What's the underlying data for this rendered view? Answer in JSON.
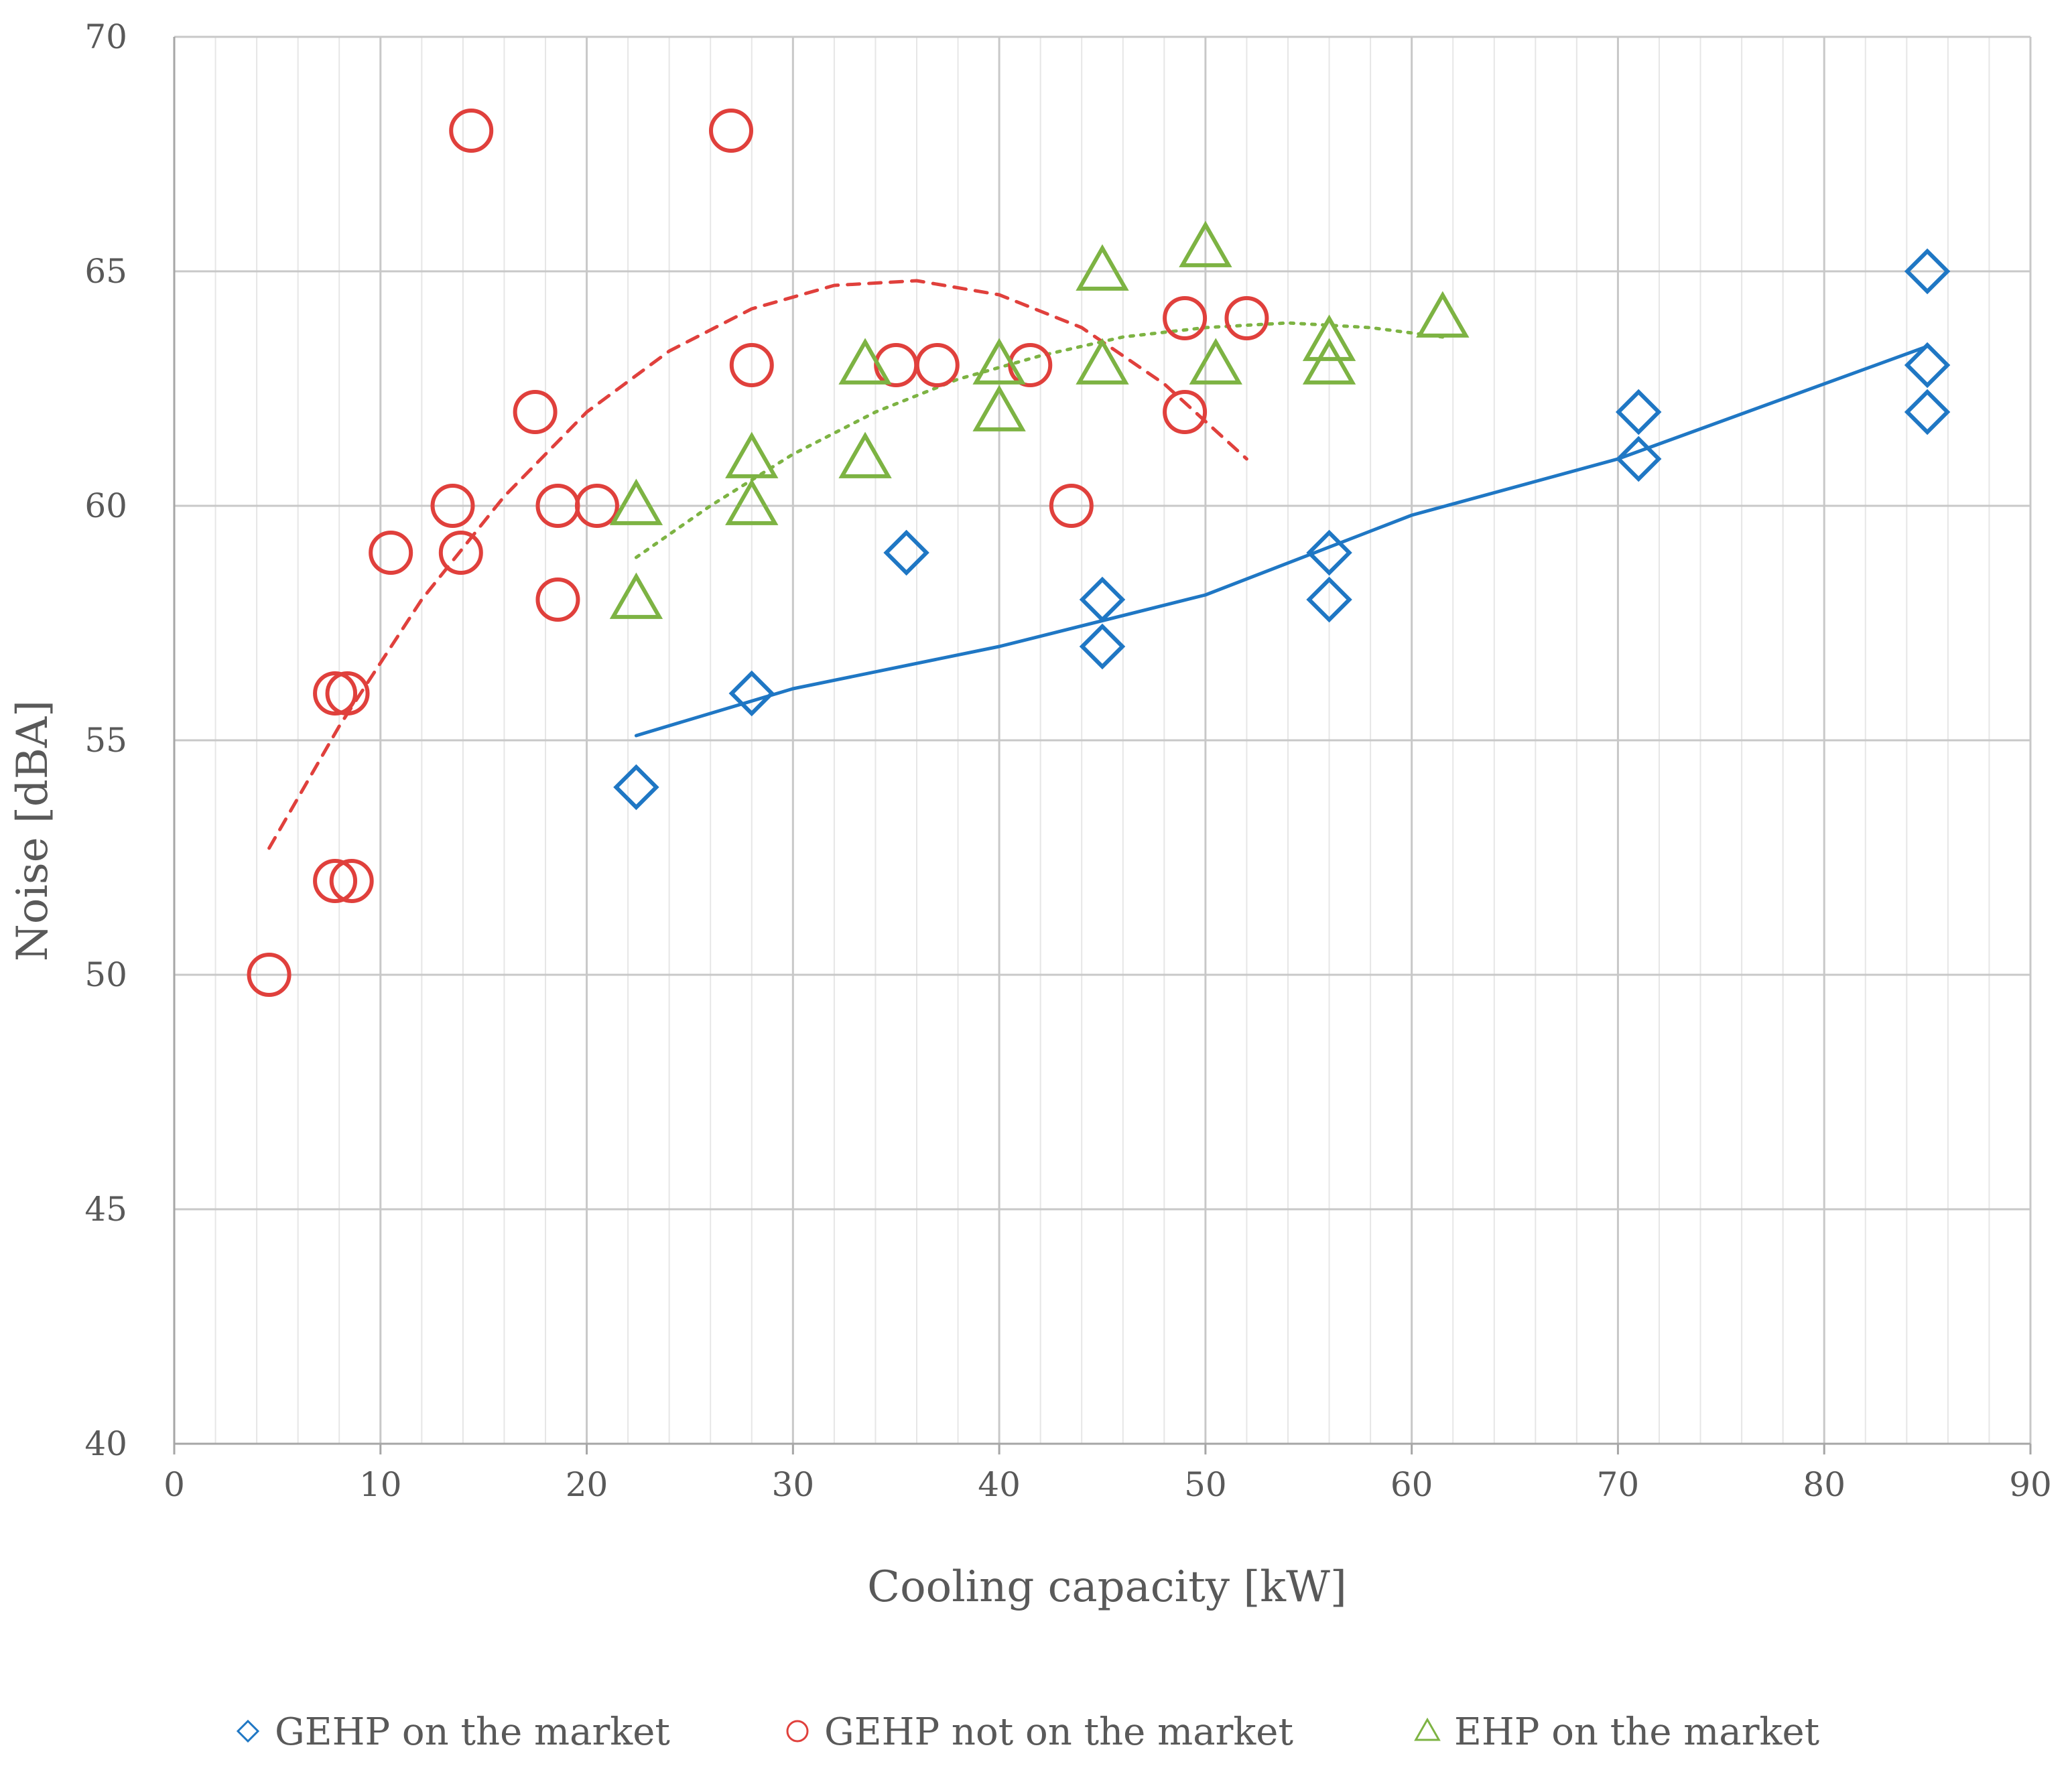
{
  "chart_data": {
    "type": "scatter",
    "xlabel": "Cooling capacity [kW]",
    "ylabel": "Noise [dBA]",
    "xlim": [
      0,
      90
    ],
    "ylim": [
      40,
      70
    ],
    "x_ticks": [
      0,
      10,
      20,
      30,
      40,
      50,
      60,
      70,
      80,
      90
    ],
    "y_ticks": [
      40,
      45,
      50,
      55,
      60,
      65,
      70
    ],
    "x_minor_step": 2,
    "grid": true,
    "legend_position": "bottom",
    "series": [
      {
        "name": "GEHP on the market",
        "marker": "diamond",
        "color": "#1f77c4",
        "trendline": "solid",
        "points": [
          [
            22.4,
            54
          ],
          [
            28,
            56
          ],
          [
            35.5,
            59
          ],
          [
            45,
            58
          ],
          [
            45,
            57
          ],
          [
            56,
            59
          ],
          [
            56,
            58
          ],
          [
            71,
            62
          ],
          [
            71,
            61
          ],
          [
            85,
            65
          ],
          [
            85,
            63
          ],
          [
            85,
            62
          ]
        ],
        "trend": [
          [
            22.4,
            55.1
          ],
          [
            30,
            56.1
          ],
          [
            40,
            57.0
          ],
          [
            50,
            58.1
          ],
          [
            60,
            59.8
          ],
          [
            70,
            61.0
          ],
          [
            85,
            63.4
          ]
        ]
      },
      {
        "name": "GEHP not on the market",
        "marker": "circle",
        "color": "#e0403c",
        "trendline": "dashed",
        "points": [
          [
            4.6,
            50
          ],
          [
            7.8,
            56
          ],
          [
            8.4,
            56
          ],
          [
            7.8,
            52
          ],
          [
            8.6,
            52
          ],
          [
            10.5,
            59
          ],
          [
            13.5,
            60
          ],
          [
            13.9,
            59
          ],
          [
            14.4,
            68
          ],
          [
            17.5,
            62
          ],
          [
            18.6,
            60
          ],
          [
            18.6,
            58
          ],
          [
            20.5,
            60
          ],
          [
            27,
            68
          ],
          [
            28,
            63
          ],
          [
            35,
            63
          ],
          [
            37,
            63
          ],
          [
            41.5,
            63
          ],
          [
            43.5,
            60
          ],
          [
            49,
            64
          ],
          [
            49,
            62
          ],
          [
            52,
            64
          ]
        ],
        "trend": [
          [
            4.6,
            52.7
          ],
          [
            8,
            55.3
          ],
          [
            12,
            58.0
          ],
          [
            16,
            60.2
          ],
          [
            20,
            62.0
          ],
          [
            24,
            63.3
          ],
          [
            28,
            64.2
          ],
          [
            32,
            64.7
          ],
          [
            36,
            64.8
          ],
          [
            40,
            64.5
          ],
          [
            44,
            63.8
          ],
          [
            48,
            62.6
          ],
          [
            52,
            61.0
          ]
        ]
      },
      {
        "name": "EHP on the market",
        "marker": "triangle",
        "color": "#7db343",
        "trendline": "dotted",
        "points": [
          [
            22.4,
            60
          ],
          [
            22.4,
            58
          ],
          [
            28,
            61
          ],
          [
            28,
            60
          ],
          [
            33.5,
            63
          ],
          [
            33.5,
            61
          ],
          [
            40,
            63
          ],
          [
            40,
            62
          ],
          [
            45,
            65
          ],
          [
            45,
            63
          ],
          [
            50,
            65.5
          ],
          [
            50.5,
            63
          ],
          [
            56,
            63.5
          ],
          [
            56,
            63
          ],
          [
            61.5,
            64
          ]
        ],
        "trend": [
          [
            22.4,
            58.9
          ],
          [
            26,
            60.0
          ],
          [
            30,
            61.1
          ],
          [
            34,
            62.0
          ],
          [
            38,
            62.7
          ],
          [
            42,
            63.2
          ],
          [
            46,
            63.6
          ],
          [
            50,
            63.8
          ],
          [
            54,
            63.9
          ],
          [
            58,
            63.8
          ],
          [
            61.5,
            63.6
          ]
        ]
      }
    ]
  }
}
